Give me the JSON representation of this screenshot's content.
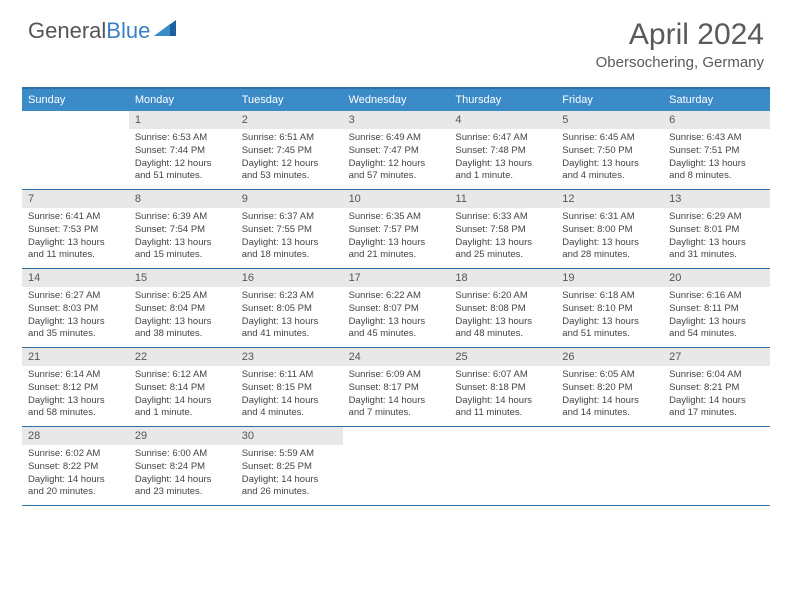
{
  "logo": {
    "text1": "General",
    "text2": "Blue"
  },
  "title": "April 2024",
  "location": "Obersochering, Germany",
  "colors": {
    "header_bg": "#3b8bc9",
    "border": "#2e6fa8",
    "daynum_bg": "#e8e8e8",
    "text": "#444444",
    "title_text": "#5a5a5a"
  },
  "daynames": [
    "Sunday",
    "Monday",
    "Tuesday",
    "Wednesday",
    "Thursday",
    "Friday",
    "Saturday"
  ],
  "weeks": [
    [
      null,
      {
        "n": "1",
        "sr": "6:53 AM",
        "ss": "7:44 PM",
        "dl": "12 hours and 51 minutes."
      },
      {
        "n": "2",
        "sr": "6:51 AM",
        "ss": "7:45 PM",
        "dl": "12 hours and 53 minutes."
      },
      {
        "n": "3",
        "sr": "6:49 AM",
        "ss": "7:47 PM",
        "dl": "12 hours and 57 minutes."
      },
      {
        "n": "4",
        "sr": "6:47 AM",
        "ss": "7:48 PM",
        "dl": "13 hours and 1 minute."
      },
      {
        "n": "5",
        "sr": "6:45 AM",
        "ss": "7:50 PM",
        "dl": "13 hours and 4 minutes."
      },
      {
        "n": "6",
        "sr": "6:43 AM",
        "ss": "7:51 PM",
        "dl": "13 hours and 8 minutes."
      }
    ],
    [
      {
        "n": "7",
        "sr": "6:41 AM",
        "ss": "7:53 PM",
        "dl": "13 hours and 11 minutes."
      },
      {
        "n": "8",
        "sr": "6:39 AM",
        "ss": "7:54 PM",
        "dl": "13 hours and 15 minutes."
      },
      {
        "n": "9",
        "sr": "6:37 AM",
        "ss": "7:55 PM",
        "dl": "13 hours and 18 minutes."
      },
      {
        "n": "10",
        "sr": "6:35 AM",
        "ss": "7:57 PM",
        "dl": "13 hours and 21 minutes."
      },
      {
        "n": "11",
        "sr": "6:33 AM",
        "ss": "7:58 PM",
        "dl": "13 hours and 25 minutes."
      },
      {
        "n": "12",
        "sr": "6:31 AM",
        "ss": "8:00 PM",
        "dl": "13 hours and 28 minutes."
      },
      {
        "n": "13",
        "sr": "6:29 AM",
        "ss": "8:01 PM",
        "dl": "13 hours and 31 minutes."
      }
    ],
    [
      {
        "n": "14",
        "sr": "6:27 AM",
        "ss": "8:03 PM",
        "dl": "13 hours and 35 minutes."
      },
      {
        "n": "15",
        "sr": "6:25 AM",
        "ss": "8:04 PM",
        "dl": "13 hours and 38 minutes."
      },
      {
        "n": "16",
        "sr": "6:23 AM",
        "ss": "8:05 PM",
        "dl": "13 hours and 41 minutes."
      },
      {
        "n": "17",
        "sr": "6:22 AM",
        "ss": "8:07 PM",
        "dl": "13 hours and 45 minutes."
      },
      {
        "n": "18",
        "sr": "6:20 AM",
        "ss": "8:08 PM",
        "dl": "13 hours and 48 minutes."
      },
      {
        "n": "19",
        "sr": "6:18 AM",
        "ss": "8:10 PM",
        "dl": "13 hours and 51 minutes."
      },
      {
        "n": "20",
        "sr": "6:16 AM",
        "ss": "8:11 PM",
        "dl": "13 hours and 54 minutes."
      }
    ],
    [
      {
        "n": "21",
        "sr": "6:14 AM",
        "ss": "8:12 PM",
        "dl": "13 hours and 58 minutes."
      },
      {
        "n": "22",
        "sr": "6:12 AM",
        "ss": "8:14 PM",
        "dl": "14 hours and 1 minute."
      },
      {
        "n": "23",
        "sr": "6:11 AM",
        "ss": "8:15 PM",
        "dl": "14 hours and 4 minutes."
      },
      {
        "n": "24",
        "sr": "6:09 AM",
        "ss": "8:17 PM",
        "dl": "14 hours and 7 minutes."
      },
      {
        "n": "25",
        "sr": "6:07 AM",
        "ss": "8:18 PM",
        "dl": "14 hours and 11 minutes."
      },
      {
        "n": "26",
        "sr": "6:05 AM",
        "ss": "8:20 PM",
        "dl": "14 hours and 14 minutes."
      },
      {
        "n": "27",
        "sr": "6:04 AM",
        "ss": "8:21 PM",
        "dl": "14 hours and 17 minutes."
      }
    ],
    [
      {
        "n": "28",
        "sr": "6:02 AM",
        "ss": "8:22 PM",
        "dl": "14 hours and 20 minutes."
      },
      {
        "n": "29",
        "sr": "6:00 AM",
        "ss": "8:24 PM",
        "dl": "14 hours and 23 minutes."
      },
      {
        "n": "30",
        "sr": "5:59 AM",
        "ss": "8:25 PM",
        "dl": "14 hours and 26 minutes."
      },
      null,
      null,
      null,
      null
    ]
  ],
  "labels": {
    "sunrise": "Sunrise:",
    "sunset": "Sunset:",
    "daylight": "Daylight:"
  }
}
